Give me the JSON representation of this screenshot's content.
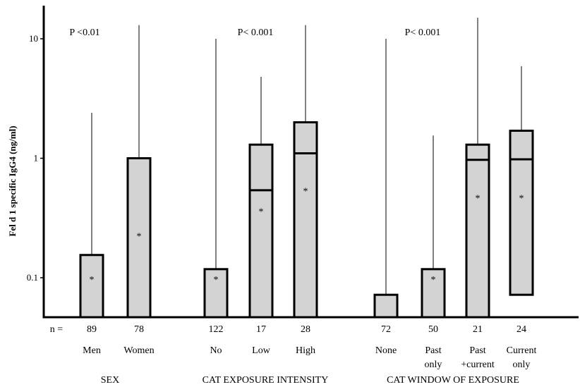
{
  "chart_data": {
    "type": "box",
    "ylabel": "Fel d 1 specific IgG4 (ng/ml)",
    "yscale": "log",
    "ylim": [
      0.045,
      13
    ],
    "yticks": [
      {
        "value": 10,
        "label": "10"
      },
      {
        "value": 1,
        "label": "1"
      },
      {
        "value": 0.1,
        "label": "0.1"
      }
    ],
    "n_prefix": "n =",
    "box_fill": "#d3d3d3",
    "groups": [
      {
        "name": "SEX",
        "pvalue": "P <0.01",
        "boxes": [
          {
            "label": [
              "Men"
            ],
            "n": "89",
            "q1": 0.045,
            "median": null,
            "q3": 0.155,
            "mean": 0.1,
            "whisker_high": 2.4
          },
          {
            "label": [
              "Women"
            ],
            "n": "78",
            "q1": 0.045,
            "median": null,
            "q3": 1.0,
            "mean": 0.23,
            "whisker_high": 13
          }
        ]
      },
      {
        "name": "CAT EXPOSURE INTENSITY",
        "pvalue": "P< 0.001",
        "boxes": [
          {
            "label": [
              "No"
            ],
            "n": "122",
            "q1": 0.045,
            "median": null,
            "q3": 0.118,
            "mean": 0.1,
            "whisker_high": 10
          },
          {
            "label": [
              "Low"
            ],
            "n": "17",
            "q1": 0.045,
            "median": 0.54,
            "q3": 1.3,
            "mean": 0.37,
            "whisker_high": 4.8
          },
          {
            "label": [
              "High"
            ],
            "n": "28",
            "q1": 0.045,
            "median": 1.1,
            "q3": 2.0,
            "mean": 0.55,
            "whisker_high": 13
          }
        ]
      },
      {
        "name": "CAT WINDOW OF EXPOSURE",
        "pvalue": "P< 0.001",
        "boxes": [
          {
            "label": [
              "None"
            ],
            "n": "72",
            "q1": 0.045,
            "median": null,
            "q3": 0.072,
            "mean": null,
            "whisker_high": 10
          },
          {
            "label": [
              "Past",
              "only"
            ],
            "n": "50",
            "q1": 0.045,
            "median": null,
            "q3": 0.118,
            "mean": 0.1,
            "whisker_high": 1.55
          },
          {
            "label": [
              "Past",
              "+current"
            ],
            "n": "21",
            "q1": 0.045,
            "median": 0.97,
            "q3": 1.3,
            "mean": 0.48,
            "whisker_high": 15
          },
          {
            "label": [
              "Current",
              "only"
            ],
            "n": "24",
            "q1": 0.072,
            "median": 0.98,
            "q3": 1.7,
            "mean": 0.48,
            "whisker_high": 5.9
          }
        ]
      }
    ]
  }
}
